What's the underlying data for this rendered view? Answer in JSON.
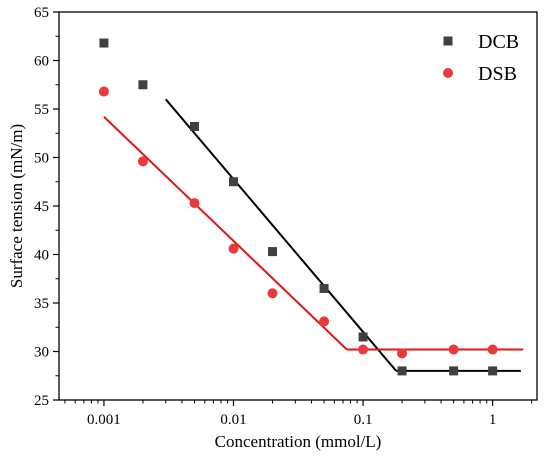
{
  "chart_data": {
    "type": "scatter",
    "title": "",
    "xlabel": "Concentration (mmol/L)",
    "ylabel": "Surface tension (mN/m)",
    "xscale": "log",
    "xlim": [
      0.00045,
      2.2
    ],
    "ylim": [
      25,
      65
    ],
    "x_ticks": [
      {
        "value": 0.001,
        "label": "0.001"
      },
      {
        "value": 0.01,
        "label": "0.01"
      },
      {
        "value": 0.1,
        "label": "0.1"
      },
      {
        "value": 1,
        "label": "1"
      }
    ],
    "y_ticks": [
      25,
      30,
      35,
      40,
      45,
      50,
      55,
      60,
      65
    ],
    "grid": false,
    "legend_position": "top-right",
    "series": [
      {
        "name": "DCB",
        "marker": "square",
        "color": "#404040",
        "points": [
          {
            "x": 0.001,
            "y": 61.8
          },
          {
            "x": 0.002,
            "y": 57.5
          },
          {
            "x": 0.005,
            "y": 53.2
          },
          {
            "x": 0.01,
            "y": 47.5
          },
          {
            "x": 0.02,
            "y": 40.3
          },
          {
            "x": 0.05,
            "y": 36.5
          },
          {
            "x": 0.1,
            "y": 31.5
          },
          {
            "x": 0.2,
            "y": 28.0
          },
          {
            "x": 0.5,
            "y": 28.0
          },
          {
            "x": 1.0,
            "y": 28.0
          }
        ],
        "fit_lines": [
          {
            "color": "#000000",
            "x": [
              0.003,
              0.18
            ],
            "y": [
              56.0,
              28.0
            ]
          },
          {
            "color": "#000000",
            "x": [
              0.18,
              1.65
            ],
            "y": [
              28.0,
              28.0
            ]
          }
        ]
      },
      {
        "name": "DSB",
        "marker": "circle",
        "color": "#e83a3a",
        "points": [
          {
            "x": 0.001,
            "y": 56.8
          },
          {
            "x": 0.002,
            "y": 49.6
          },
          {
            "x": 0.005,
            "y": 45.3
          },
          {
            "x": 0.01,
            "y": 40.6
          },
          {
            "x": 0.02,
            "y": 36.0
          },
          {
            "x": 0.05,
            "y": 33.1
          },
          {
            "x": 0.1,
            "y": 30.2
          },
          {
            "x": 0.2,
            "y": 29.8
          },
          {
            "x": 0.5,
            "y": 30.2
          },
          {
            "x": 1.0,
            "y": 30.2
          }
        ],
        "fit_lines": [
          {
            "color": "#e01515",
            "x": [
              0.001,
              0.075
            ],
            "y": [
              54.2,
              30.2
            ]
          },
          {
            "color": "#e01515",
            "x": [
              0.075,
              1.72
            ],
            "y": [
              30.2,
              30.2
            ]
          }
        ]
      }
    ]
  }
}
